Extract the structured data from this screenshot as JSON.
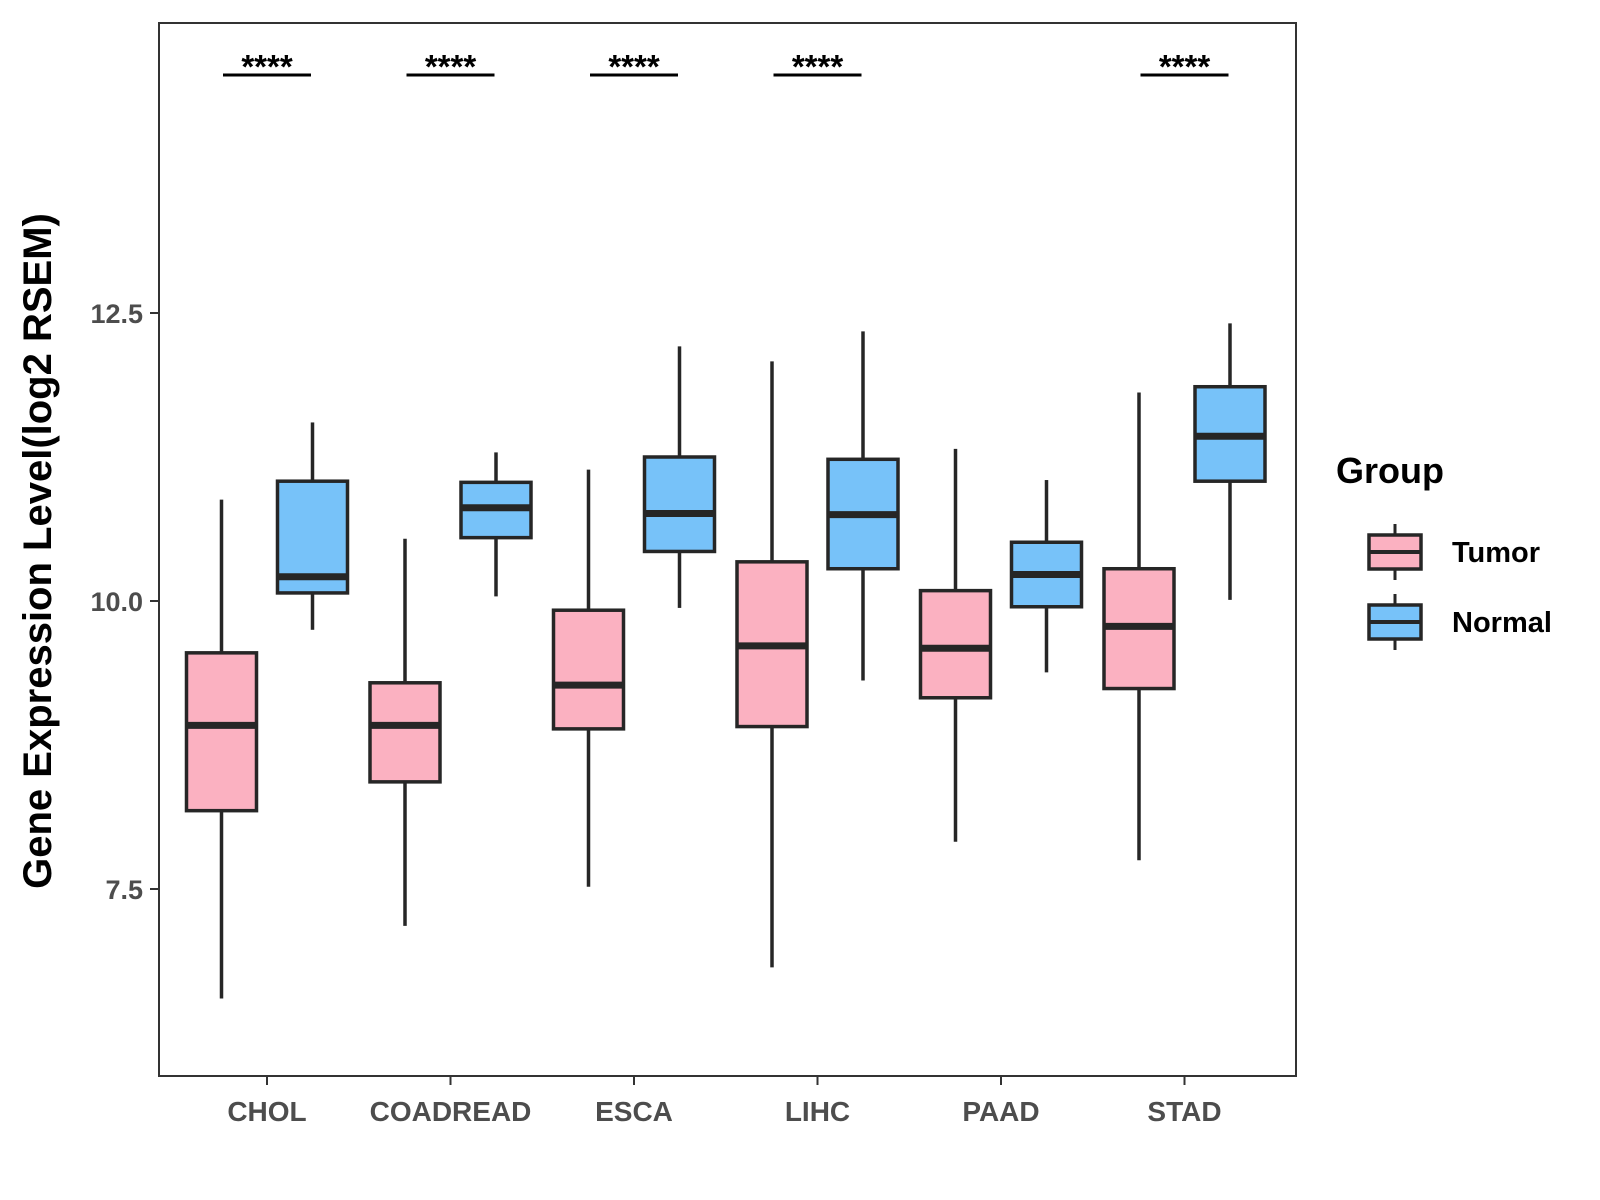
{
  "chart_data": {
    "type": "boxplot",
    "title": "",
    "xlabel": "",
    "ylabel": "Gene Expression Level(log2 RSEM)",
    "ylim": [
      5.85,
      15.0
    ],
    "yticks": [
      7.5,
      10.0,
      12.5
    ],
    "ytick_labels": [
      "7.5",
      "10.0",
      "12.5"
    ],
    "categories": [
      "CHOL",
      "COADREAD",
      "ESCA",
      "LIHC",
      "PAAD",
      "STAD"
    ],
    "legend": {
      "title": "Group",
      "position": "right",
      "entries": [
        "Tumor",
        "Normal"
      ]
    },
    "series": [
      {
        "name": "Tumor",
        "color": "#FBB1C1",
        "boxes": [
          {
            "category": "CHOL",
            "min": 6.55,
            "q1": 8.18,
            "median": 8.92,
            "q3": 9.55,
            "max": 10.88
          },
          {
            "category": "COADREAD",
            "min": 7.18,
            "q1": 8.43,
            "median": 8.92,
            "q3": 9.29,
            "max": 10.54
          },
          {
            "category": "ESCA",
            "min": 7.52,
            "q1": 8.89,
            "median": 9.27,
            "q3": 9.92,
            "max": 11.14
          },
          {
            "category": "LIHC",
            "min": 6.82,
            "q1": 8.91,
            "median": 9.61,
            "q3": 10.34,
            "max": 12.08
          },
          {
            "category": "PAAD",
            "min": 7.91,
            "q1": 9.16,
            "median": 9.59,
            "q3": 10.09,
            "max": 11.32
          },
          {
            "category": "STAD",
            "min": 7.75,
            "q1": 9.24,
            "median": 9.78,
            "q3": 10.28,
            "max": 11.81
          }
        ]
      },
      {
        "name": "Normal",
        "color": "#77C2F9",
        "boxes": [
          {
            "category": "CHOL",
            "min": 9.75,
            "q1": 10.07,
            "median": 10.21,
            "q3": 11.04,
            "max": 11.55
          },
          {
            "category": "COADREAD",
            "min": 10.04,
            "q1": 10.55,
            "median": 10.81,
            "q3": 11.03,
            "max": 11.29
          },
          {
            "category": "ESCA",
            "min": 9.94,
            "q1": 10.43,
            "median": 10.76,
            "q3": 11.25,
            "max": 12.21
          },
          {
            "category": "LIHC",
            "min": 9.31,
            "q1": 10.28,
            "median": 10.75,
            "q3": 11.23,
            "max": 12.34
          },
          {
            "category": "PAAD",
            "min": 9.38,
            "q1": 9.95,
            "median": 10.23,
            "q3": 10.51,
            "max": 11.05
          },
          {
            "category": "STAD",
            "min": 10.01,
            "q1": 11.04,
            "median": 11.43,
            "q3": 11.86,
            "max": 12.41
          }
        ]
      }
    ],
    "significance": [
      {
        "category": "CHOL",
        "label": "****"
      },
      {
        "category": "COADREAD",
        "label": "****"
      },
      {
        "category": "ESCA",
        "label": "****"
      },
      {
        "category": "LIHC",
        "label": "****"
      },
      {
        "category": "PAAD",
        "label": ""
      },
      {
        "category": "STAD",
        "label": "****"
      }
    ]
  }
}
